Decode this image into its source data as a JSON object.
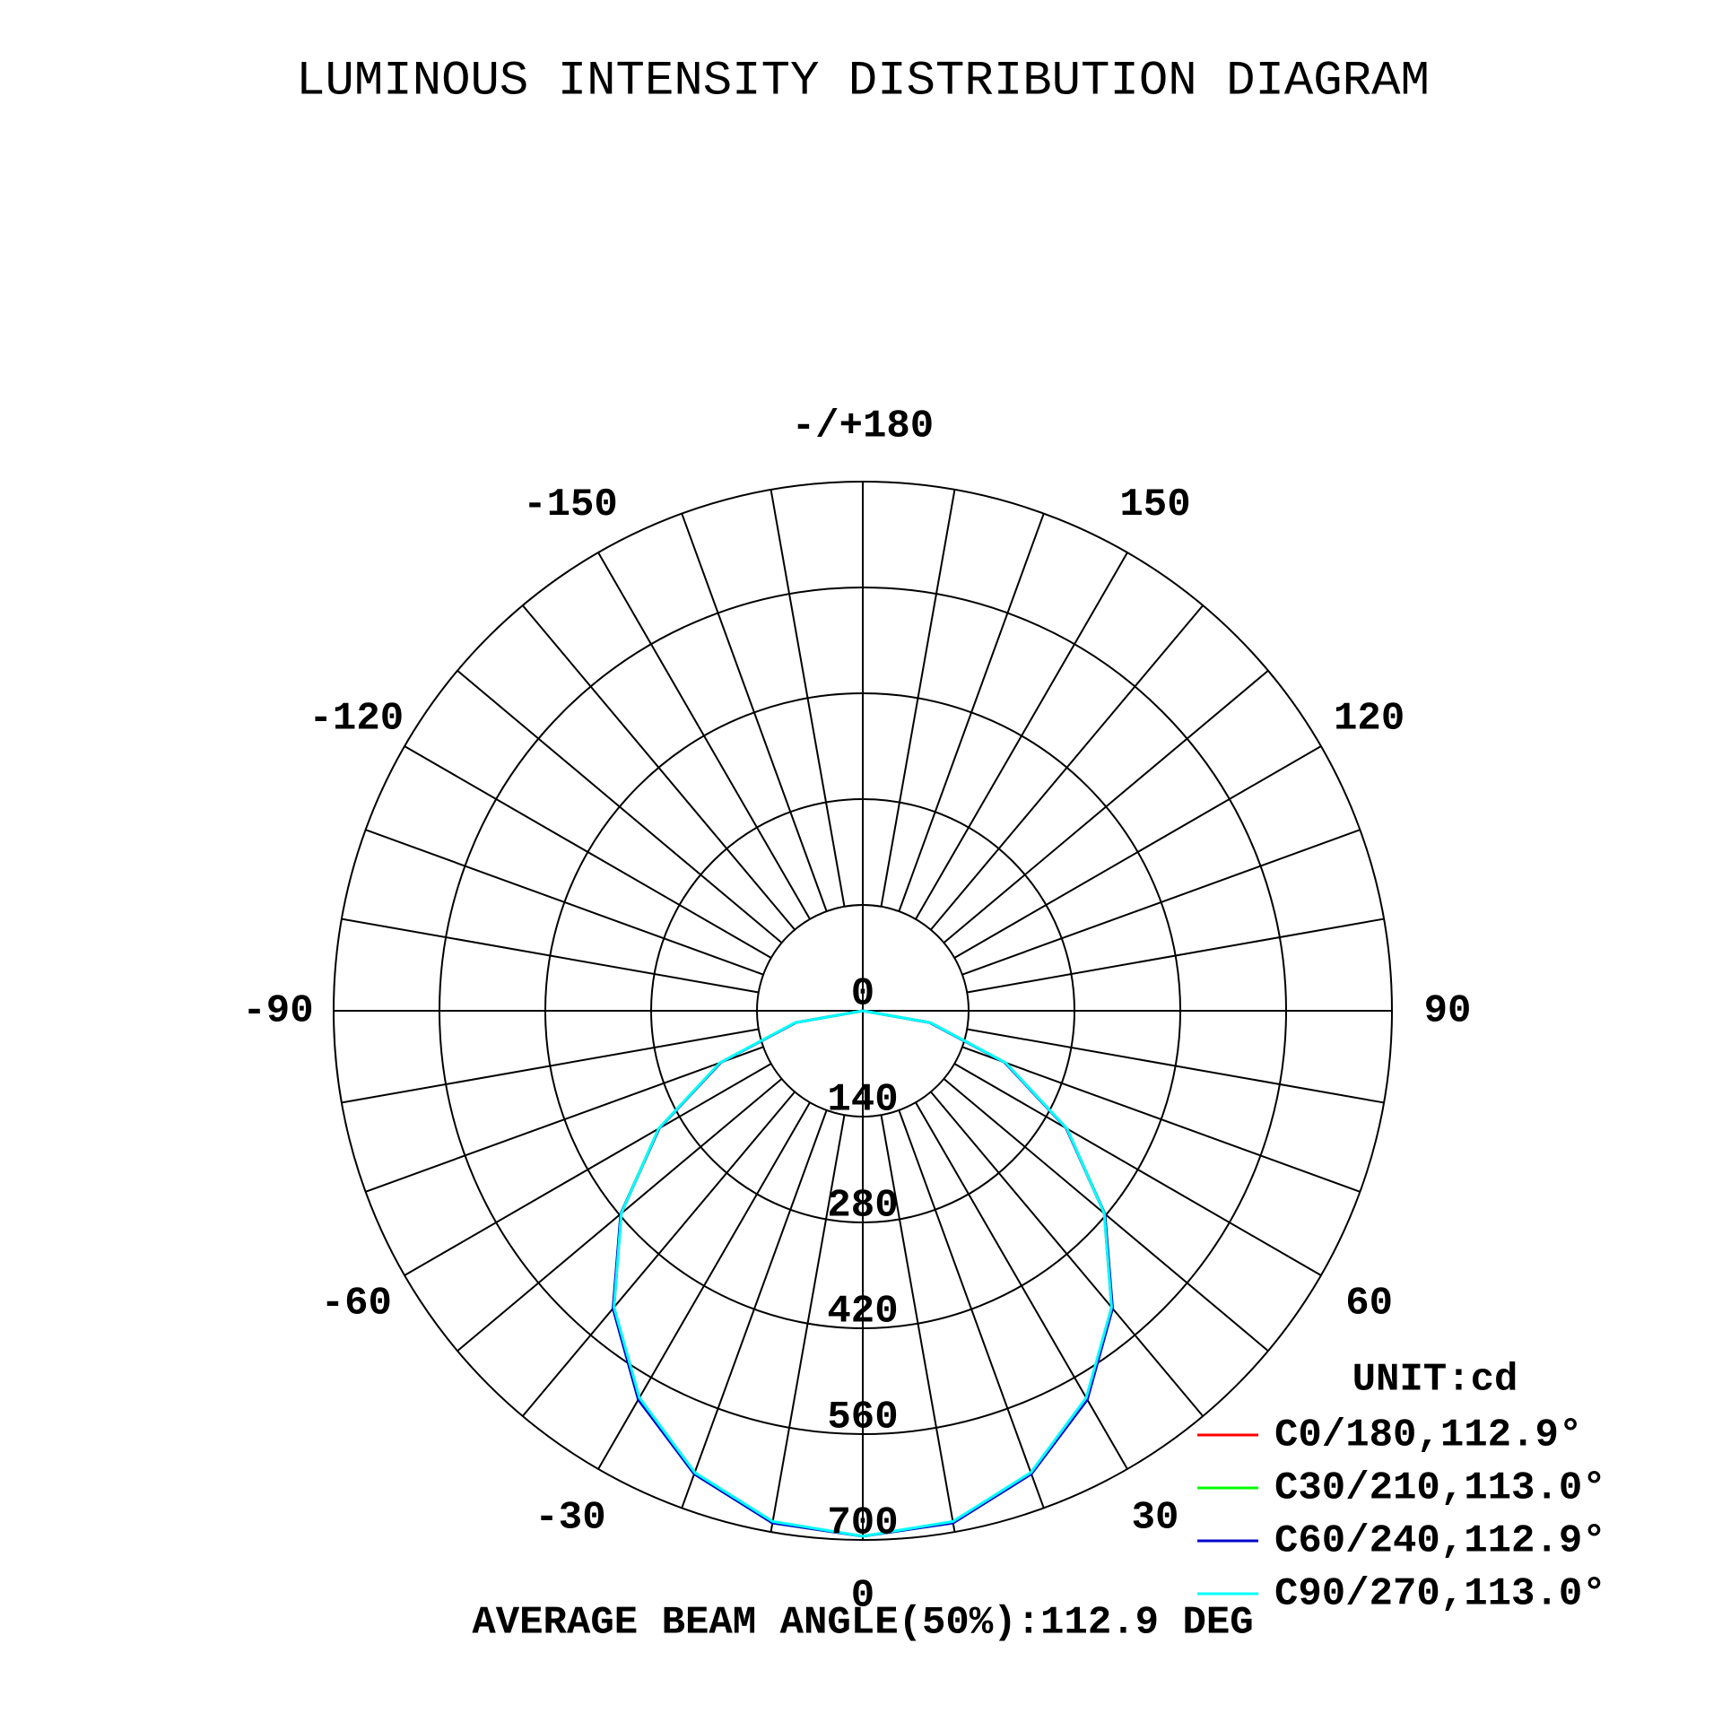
{
  "chart_data": {
    "type": "polar",
    "title": "LUMINOUS INTENSITY DISTRIBUTION DIAGRAM",
    "annotation": "AVERAGE BEAM ANGLE(50%):112.9 DEG",
    "unit_label": "UNIT:cd",
    "rlim": [
      0,
      700
    ],
    "rticks": [
      0,
      140,
      280,
      420,
      560,
      700
    ],
    "thetaticks": [
      0,
      30,
      60,
      90,
      120,
      150,
      {
        "value": 180,
        "label": "-/+180"
      },
      -150,
      -120,
      -90,
      -60,
      -30
    ],
    "theta_grid": [
      -170,
      -160,
      -150,
      -140,
      -130,
      -120,
      -110,
      -100,
      -90,
      -80,
      -70,
      -60,
      -50,
      -40,
      -30,
      -20,
      -10,
      0,
      10,
      20,
      30,
      40,
      50,
      60,
      70,
      80,
      90,
      100,
      110,
      120,
      130,
      140,
      150,
      160,
      170,
      180
    ],
    "x": [
      -90,
      -80,
      -70,
      -60,
      -50,
      -40,
      -30,
      -20,
      -10,
      0,
      10,
      20,
      30,
      40,
      50,
      60,
      70,
      80,
      90
    ],
    "series": [
      {
        "name": "C0/180,112.9°",
        "color": "#ff0000",
        "values": [
          0,
          90,
          200,
          311,
          417,
          512,
          592,
          651,
          687,
          695,
          687,
          651,
          592,
          512,
          417,
          311,
          200,
          90,
          0
        ]
      },
      {
        "name": "C30/210,113.0°",
        "color": "#00ff00",
        "values": [
          0,
          91,
          201,
          312,
          418,
          513,
          593,
          652,
          688,
          695,
          688,
          652,
          593,
          513,
          418,
          312,
          201,
          91,
          0
        ]
      },
      {
        "name": "C60/240,112.9°",
        "color": "#0000cc",
        "values": [
          0,
          90,
          200,
          311,
          418,
          514,
          594,
          652,
          688,
          695,
          688,
          652,
          594,
          514,
          418,
          311,
          200,
          90,
          0
        ]
      },
      {
        "name": "C90/270,113.0°",
        "color": "#00ffff",
        "values": [
          0,
          91,
          201,
          312,
          417,
          512,
          591,
          650,
          686,
          695,
          686,
          650,
          591,
          512,
          417,
          312,
          201,
          91,
          0
        ]
      }
    ]
  }
}
